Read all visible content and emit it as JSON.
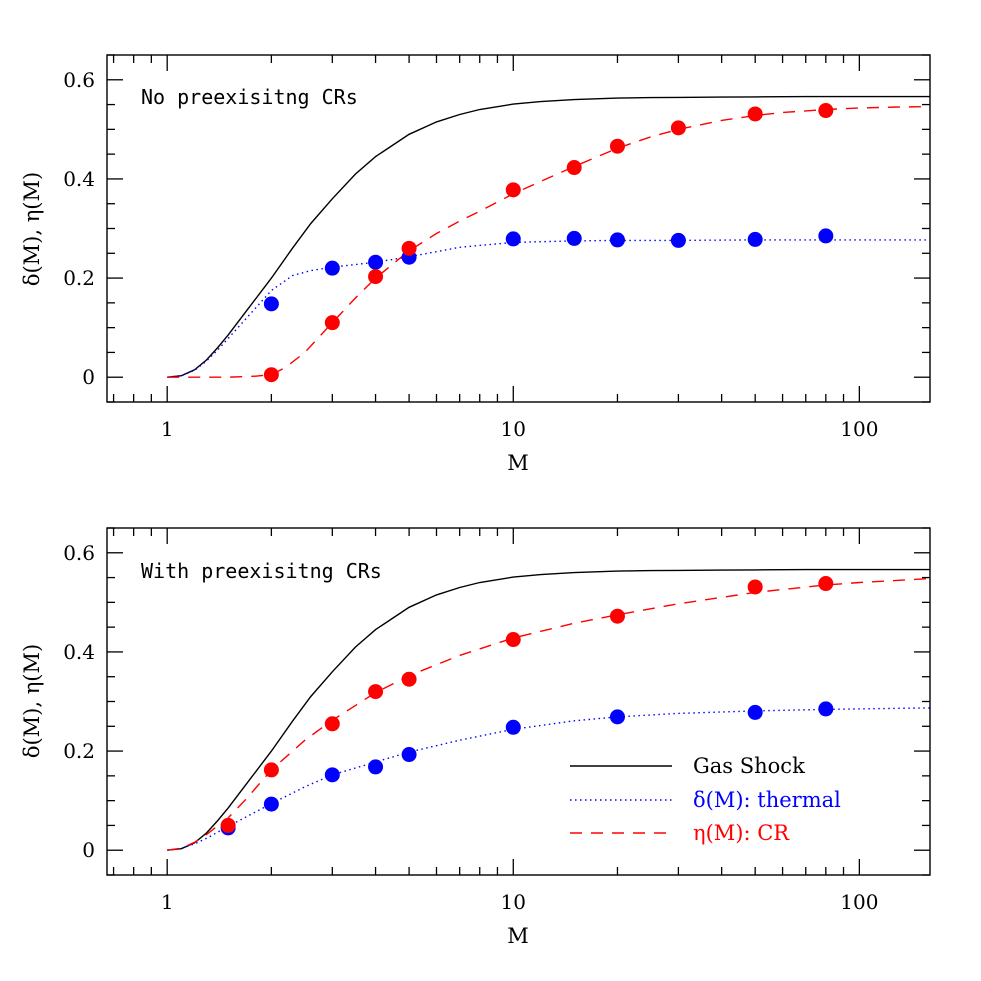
{
  "chart_data": [
    {
      "type": "line",
      "panel_label": "No preexisitng CRs",
      "xlabel": "M",
      "ylabel": "δ(M), η(M)",
      "xscale": "log",
      "xlim": [
        0.67,
        160
      ],
      "ylim": [
        -0.05,
        0.65
      ],
      "x_ticks": [
        1,
        10,
        100
      ],
      "x_tick_labels": [
        "1",
        "10",
        "100"
      ],
      "y_ticks": [
        0,
        0.2,
        0.4,
        0.6
      ],
      "y_tick_labels": [
        "0",
        "0.2",
        "0.4",
        "0.6"
      ],
      "series": [
        {
          "name": "Gas Shock",
          "style": "solid",
          "color": "#000000",
          "x": [
            1.0,
            1.1,
            1.2,
            1.3,
            1.4,
            1.5,
            1.7,
            2.0,
            2.3,
            2.6,
            3.0,
            3.5,
            4.0,
            5.0,
            6.0,
            7.0,
            8.0,
            10,
            12,
            15,
            20,
            25,
            30,
            40,
            50,
            70,
            100,
            160
          ],
          "y": [
            0.0,
            0.003,
            0.015,
            0.035,
            0.06,
            0.085,
            0.135,
            0.2,
            0.26,
            0.31,
            0.36,
            0.41,
            0.445,
            0.49,
            0.515,
            0.53,
            0.54,
            0.551,
            0.556,
            0.56,
            0.563,
            0.564,
            0.5645,
            0.565,
            0.5655,
            0.566,
            0.566,
            0.566
          ]
        },
        {
          "name": "δ(M): thermal",
          "style": "dotted",
          "color": "#0000ff",
          "x": [
            1.0,
            1.1,
            1.2,
            1.3,
            1.4,
            1.5,
            1.7,
            2.0,
            2.3,
            2.6,
            3.0,
            4.0,
            5.0,
            7.0,
            10,
            15,
            20,
            30,
            50,
            100,
            160
          ],
          "y": [
            0.0,
            0.003,
            0.014,
            0.033,
            0.055,
            0.078,
            0.12,
            0.175,
            0.205,
            0.215,
            0.222,
            0.232,
            0.243,
            0.262,
            0.272,
            0.275,
            0.276,
            0.276,
            0.277,
            0.277,
            0.277
          ]
        },
        {
          "name": "η(M): CR",
          "style": "dashed",
          "color": "#ff0000",
          "x": [
            1.0,
            1.5,
            1.8,
            2.0,
            2.2,
            2.5,
            3.0,
            3.5,
            4.0,
            5.0,
            6.0,
            7.0,
            8.0,
            10,
            12,
            15,
            20,
            25,
            30,
            40,
            50,
            60,
            80,
            100,
            130,
            160
          ],
          "y": [
            0.0,
            0.0,
            0.002,
            0.005,
            0.02,
            0.05,
            0.11,
            0.16,
            0.2,
            0.255,
            0.29,
            0.315,
            0.335,
            0.37,
            0.395,
            0.425,
            0.462,
            0.485,
            0.5,
            0.518,
            0.528,
            0.534,
            0.54,
            0.543,
            0.545,
            0.546
          ]
        }
      ],
      "markers": [
        {
          "name": "δ(M) simulation points",
          "color": "#0000ff",
          "x": [
            2,
            3,
            4,
            5,
            10,
            15,
            20,
            30,
            50,
            80
          ],
          "y": [
            0.148,
            0.22,
            0.232,
            0.242,
            0.279,
            0.28,
            0.277,
            0.276,
            0.278,
            0.285
          ]
        },
        {
          "name": "η(M) simulation points",
          "color": "#ff0000",
          "x": [
            2,
            3,
            4,
            5,
            10,
            15,
            20,
            30,
            50,
            80
          ],
          "y": [
            0.005,
            0.11,
            0.203,
            0.26,
            0.378,
            0.423,
            0.466,
            0.503,
            0.531,
            0.538
          ]
        }
      ]
    },
    {
      "type": "line",
      "panel_label": "With preexisitng CRs",
      "xlabel": "M",
      "ylabel": "δ(M), η(M)",
      "xscale": "log",
      "xlim": [
        0.67,
        160
      ],
      "ylim": [
        -0.05,
        0.65
      ],
      "x_ticks": [
        1,
        10,
        100
      ],
      "x_tick_labels": [
        "1",
        "10",
        "100"
      ],
      "y_ticks": [
        0,
        0.2,
        0.4,
        0.6
      ],
      "y_tick_labels": [
        "0",
        "0.2",
        "0.4",
        "0.6"
      ],
      "series": [
        {
          "name": "Gas Shock",
          "style": "solid",
          "color": "#000000",
          "x": [
            1.0,
            1.1,
            1.2,
            1.3,
            1.4,
            1.5,
            1.7,
            2.0,
            2.3,
            2.6,
            3.0,
            3.5,
            4.0,
            5.0,
            6.0,
            7.0,
            8.0,
            10,
            12,
            15,
            20,
            25,
            30,
            40,
            50,
            70,
            100,
            160
          ],
          "y": [
            0.0,
            0.003,
            0.015,
            0.035,
            0.06,
            0.085,
            0.135,
            0.2,
            0.26,
            0.31,
            0.36,
            0.41,
            0.445,
            0.49,
            0.515,
            0.53,
            0.54,
            0.551,
            0.556,
            0.56,
            0.563,
            0.564,
            0.5645,
            0.565,
            0.5655,
            0.566,
            0.566,
            0.566
          ]
        },
        {
          "name": "δ(M): thermal",
          "style": "dotted",
          "color": "#0000ff",
          "x": [
            1.0,
            1.1,
            1.2,
            1.3,
            1.5,
            1.7,
            2.0,
            2.5,
            3.0,
            4.0,
            5.0,
            7.0,
            10,
            15,
            20,
            30,
            50,
            80,
            100,
            160
          ],
          "y": [
            0.0,
            0.004,
            0.013,
            0.024,
            0.048,
            0.068,
            0.094,
            0.128,
            0.152,
            0.178,
            0.198,
            0.222,
            0.244,
            0.261,
            0.269,
            0.276,
            0.281,
            0.284,
            0.285,
            0.287
          ]
        },
        {
          "name": "η(M): CR",
          "style": "dashed",
          "color": "#ff0000",
          "x": [
            1.0,
            1.1,
            1.2,
            1.3,
            1.5,
            1.7,
            2.0,
            2.5,
            3.0,
            4.0,
            5.0,
            7.0,
            10,
            15,
            20,
            30,
            50,
            80,
            100,
            160
          ],
          "y": [
            0.0,
            0.004,
            0.016,
            0.032,
            0.065,
            0.105,
            0.162,
            0.222,
            0.262,
            0.318,
            0.352,
            0.393,
            0.428,
            0.458,
            0.475,
            0.497,
            0.52,
            0.535,
            0.54,
            0.548
          ]
        }
      ],
      "markers": [
        {
          "name": "δ(M) simulation points",
          "color": "#0000ff",
          "x": [
            1.5,
            2,
            3,
            4,
            5,
            10,
            20,
            50,
            80
          ],
          "y": [
            0.045,
            0.093,
            0.152,
            0.168,
            0.193,
            0.248,
            0.269,
            0.278,
            0.285
          ]
        },
        {
          "name": "η(M) simulation points",
          "color": "#ff0000",
          "x": [
            1.5,
            2,
            3,
            4,
            5,
            10,
            20,
            50,
            80
          ],
          "y": [
            0.05,
            0.162,
            0.255,
            0.32,
            0.345,
            0.425,
            0.472,
            0.531,
            0.538
          ]
        }
      ],
      "legend": {
        "placement": "bottom-right",
        "entries": [
          {
            "label": "Gas Shock",
            "style": "solid",
            "color": "#000000"
          },
          {
            "label": "δ(M): thermal",
            "style": "dotted",
            "color": "#0000ff"
          },
          {
            "label": "η(M): CR",
            "style": "dashed",
            "color": "#ff0000"
          }
        ]
      }
    }
  ]
}
